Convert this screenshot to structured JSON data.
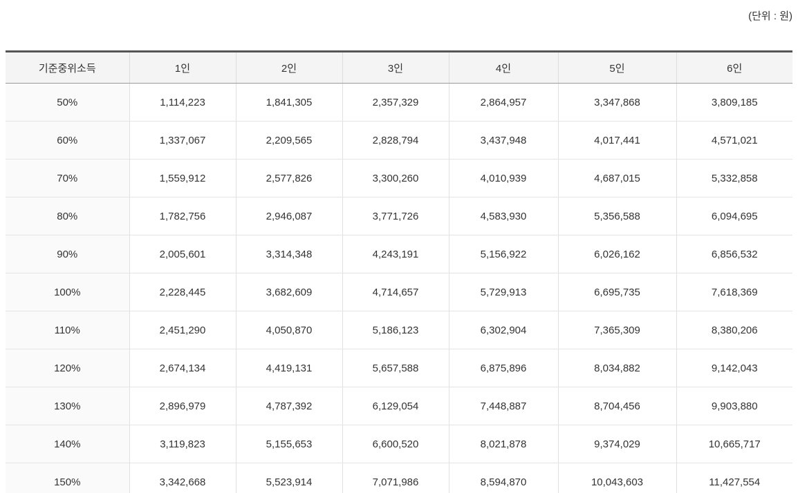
{
  "unit_label": "(단위 : 원)",
  "table": {
    "columns": [
      "기준중위소득",
      "1인",
      "2인",
      "3인",
      "4인",
      "5인",
      "6인"
    ],
    "rows": [
      {
        "label": "50%",
        "values": [
          "1,114,223",
          "1,841,305",
          "2,357,329",
          "2,864,957",
          "3,347,868",
          "3,809,185"
        ]
      },
      {
        "label": "60%",
        "values": [
          "1,337,067",
          "2,209,565",
          "2,828,794",
          "3,437,948",
          "4,017,441",
          "4,571,021"
        ]
      },
      {
        "label": "70%",
        "values": [
          "1,559,912",
          "2,577,826",
          "3,300,260",
          "4,010,939",
          "4,687,015",
          "5,332,858"
        ]
      },
      {
        "label": "80%",
        "values": [
          "1,782,756",
          "2,946,087",
          "3,771,726",
          "4,583,930",
          "5,356,588",
          "6,094,695"
        ]
      },
      {
        "label": "90%",
        "values": [
          "2,005,601",
          "3,314,348",
          "4,243,191",
          "5,156,922",
          "6,026,162",
          "6,856,532"
        ]
      },
      {
        "label": "100%",
        "values": [
          "2,228,445",
          "3,682,609",
          "4,714,657",
          "5,729,913",
          "6,695,735",
          "7,618,369"
        ]
      },
      {
        "label": "110%",
        "values": [
          "2,451,290",
          "4,050,870",
          "5,186,123",
          "6,302,904",
          "7,365,309",
          "8,380,206"
        ]
      },
      {
        "label": "120%",
        "values": [
          "2,674,134",
          "4,419,131",
          "5,657,588",
          "6,875,896",
          "8,034,882",
          "9,142,043"
        ]
      },
      {
        "label": "130%",
        "values": [
          "2,896,979",
          "4,787,392",
          "6,129,054",
          "7,448,887",
          "8,704,456",
          "9,903,880"
        ]
      },
      {
        "label": "140%",
        "values": [
          "3,119,823",
          "5,155,653",
          "6,600,520",
          "8,021,878",
          "9,374,029",
          "10,665,717"
        ]
      },
      {
        "label": "150%",
        "values": [
          "3,342,668",
          "5,523,914",
          "7,071,986",
          "8,594,870",
          "10,043,603",
          "11,427,554"
        ]
      }
    ]
  },
  "colors": {
    "top_border": "#555555",
    "header_bg": "#f4f4f4",
    "header_bottom_border": "#999999",
    "row_border": "#e4e4e4",
    "column_border": "#e0e0e0",
    "first_column_bg": "#fafafa",
    "text": "#333333"
  },
  "chart_data": {
    "type": "table",
    "title": "기준중위소득 (standard median income)",
    "unit": "원",
    "row_labels": [
      "50%",
      "60%",
      "70%",
      "80%",
      "90%",
      "100%",
      "110%",
      "120%",
      "130%",
      "140%",
      "150%"
    ],
    "column_labels": [
      "1인",
      "2인",
      "3인",
      "4인",
      "5인",
      "6인"
    ],
    "values": [
      [
        1114223,
        1841305,
        2357329,
        2864957,
        3347868,
        3809185
      ],
      [
        1337067,
        2209565,
        2828794,
        3437948,
        4017441,
        4571021
      ],
      [
        1559912,
        2577826,
        3300260,
        4010939,
        4687015,
        5332858
      ],
      [
        1782756,
        2946087,
        3771726,
        4583930,
        5356588,
        6094695
      ],
      [
        2005601,
        3314348,
        4243191,
        5156922,
        6026162,
        6856532
      ],
      [
        2228445,
        3682609,
        4714657,
        5729913,
        6695735,
        7618369
      ],
      [
        2451290,
        4050870,
        5186123,
        6302904,
        7365309,
        8380206
      ],
      [
        2674134,
        4419131,
        5657588,
        6875896,
        8034882,
        9142043
      ],
      [
        2896979,
        4787392,
        6129054,
        7448887,
        8704456,
        9903880
      ],
      [
        3119823,
        5155653,
        6600520,
        8021878,
        9374029,
        10665717
      ],
      [
        3342668,
        5523914,
        7071986,
        8594870,
        10043603,
        11427554
      ]
    ]
  }
}
